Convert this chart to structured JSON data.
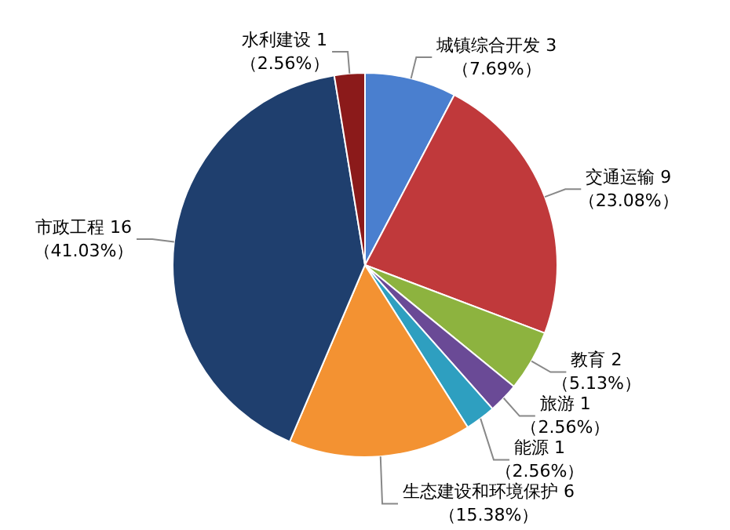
{
  "chart_data": {
    "type": "pie",
    "categories": [
      "城镇综合开发 3",
      "交通运输 9",
      "教育 2",
      "旅游 1",
      "能源 1",
      "生态建设和环境保护 6",
      "市政工程 16",
      "水利建设 1"
    ],
    "values": [
      7.69,
      23.08,
      5.13,
      2.56,
      2.56,
      15.38,
      41.03,
      2.56
    ],
    "colors": [
      "#4a7fcf",
      "#c0393b",
      "#8db33f",
      "#6a4a96",
      "#2e9fc0",
      "#f39232",
      "#1f3f6e",
      "#8b1a1a"
    ],
    "value_labels": [
      "（7.69%）",
      "（23.08%）",
      "（5.13%）",
      "（2.56%）",
      "（2.56%）",
      "（15.38%）",
      "（41.03%）",
      "（2.56%）"
    ]
  }
}
